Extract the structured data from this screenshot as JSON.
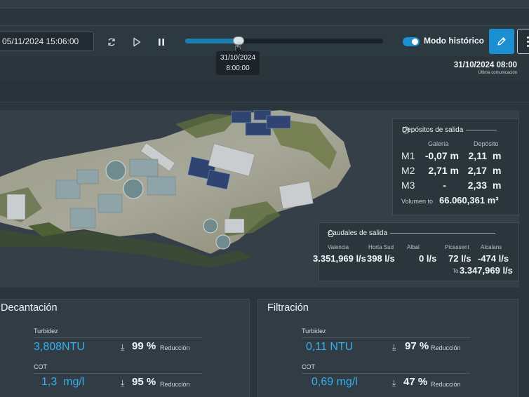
{
  "toolbar": {
    "date_value": "05/11/2024 15:06:00",
    "slider_progress": 0.27,
    "tooltip_date": "31/10/2024",
    "tooltip_time": "8:00:00",
    "historic_mode_label": "Modo histórico",
    "historic_mode_on": true,
    "accent_color": "#1b8fd1"
  },
  "last_communication": {
    "date": "31/10/2024 08:00",
    "label": "Última comunicación"
  },
  "deposits": {
    "title": "Depósitos de salida",
    "col_galeria": "Galería",
    "col_deposito": "Depósito",
    "rows": [
      {
        "label": "M1",
        "galeria": "-0,07 m",
        "deposito": "2,11",
        "unit": "m"
      },
      {
        "label": "M2",
        "galeria": "2,71 m",
        "deposito": "2,17",
        "unit": "m"
      },
      {
        "label": "M3",
        "galeria": "-",
        "deposito": "2,33",
        "unit": "m"
      }
    ],
    "volume_label": "Volumen to",
    "volume_value": "66.060,361 m³"
  },
  "flows": {
    "title": "Caudales de salida",
    "columns": [
      "Valencia",
      "Horta Sud",
      "Albal",
      "Picassent",
      "Alcalans"
    ],
    "values": [
      "3.351,969 l/s",
      "398 l/s",
      "0 l/s",
      "72 l/s",
      "-474 l/s"
    ],
    "total_label": "To",
    "total_value": "3.347,969 l/s"
  },
  "decantacion": {
    "title": "Decantación",
    "turbidez_label": "Turbidez",
    "turbidez_value": "3,808NTU",
    "turbidez_pct": "99 %",
    "cot_label": "COT",
    "cot_value": "1,3  mg/l",
    "cot_pct": "95 %",
    "reduction_label": "Reducción"
  },
  "filtracion": {
    "title": "Filtración",
    "turbidez_label": "Turbidez",
    "turbidez_value": "0,11 NTU",
    "turbidez_pct": "97 %",
    "cot_label": "COT",
    "cot_value": "0,69 mg/l",
    "cot_pct": "47 %",
    "reduction_label": "Reducción"
  },
  "icons": [
    "refresh-icon",
    "play-icon",
    "pause-icon",
    "pencil-icon",
    "kebab-menu-icon",
    "gauge-icon",
    "water-drop-icon",
    "down-arrow-icon",
    "hand-cursor-icon"
  ]
}
